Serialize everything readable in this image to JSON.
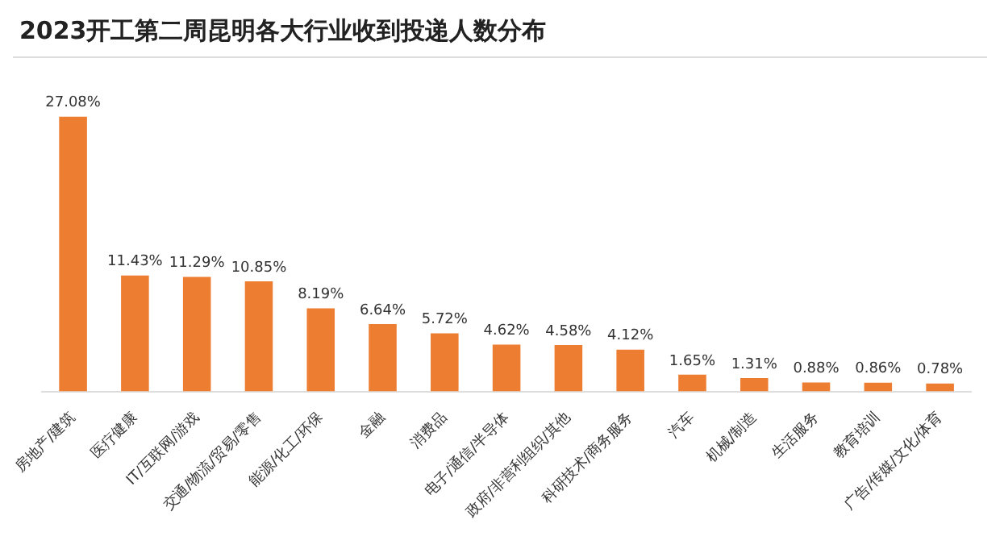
{
  "chart_data": {
    "type": "bar",
    "title": "2023开工第二周昆明各大行业收到投递人数分布",
    "categories": [
      "房地产/建筑",
      "医疗健康",
      "IT/互联网/游戏",
      "交通/物流/贸易/零售",
      "能源/化工/环保",
      "金融",
      "消费品",
      "电子/通信/半导体",
      "政府/非营利组织/其他",
      "科研技术/商务服务",
      "汽车",
      "机械/制造",
      "生活服务",
      "教育培训",
      "广告/传媒/文化/体育"
    ],
    "values": [
      27.08,
      11.43,
      11.29,
      10.85,
      8.19,
      6.64,
      5.72,
      4.62,
      4.58,
      4.12,
      1.65,
      1.31,
      0.88,
      0.86,
      0.78
    ],
    "value_labels": [
      "27.08%",
      "11.43%",
      "11.29%",
      "10.85%",
      "8.19%",
      "6.64%",
      "5.72%",
      "4.62%",
      "4.58%",
      "4.12%",
      "1.65%",
      "1.31%",
      "0.88%",
      "0.86%",
      "0.78%"
    ],
    "color": "#ed7d31",
    "grid": false,
    "legend": false
  }
}
